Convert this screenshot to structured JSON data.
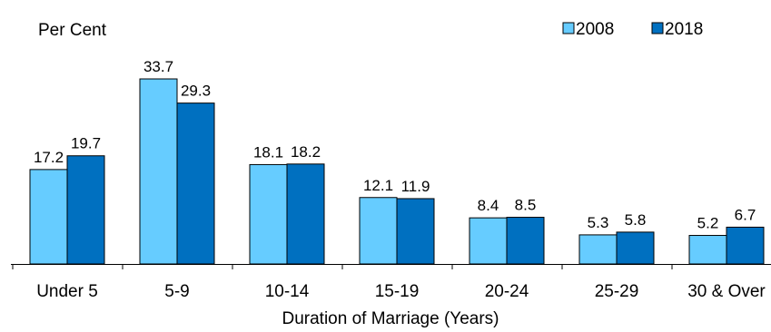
{
  "chart_data": {
    "type": "bar",
    "ylabel": "Per Cent",
    "xlabel": "Duration of Marriage (Years)",
    "categories": [
      "Under 5",
      "5-9",
      "10-14",
      "15-19",
      "20-24",
      "25-29",
      "30 & Over"
    ],
    "series": [
      {
        "name": "2008",
        "color": "#66CCFF",
        "values": [
          17.2,
          33.7,
          18.1,
          12.1,
          8.4,
          5.3,
          5.2
        ],
        "labels": [
          "17.2",
          "33.7",
          "18.1",
          "12.1",
          "8.4",
          "5.3",
          "5.2"
        ]
      },
      {
        "name": "2018",
        "color": "#0070C0",
        "values": [
          19.7,
          29.3,
          18.2,
          11.9,
          8.5,
          5.8,
          6.7
        ],
        "labels": [
          "19.7",
          "29.3",
          "18.2",
          "11.9",
          "8.5",
          "5.8",
          "6.7"
        ]
      }
    ],
    "ylim": [
      0,
      33.7
    ],
    "grid": false,
    "legend_position": "top-right",
    "y_axis_visible": false,
    "bar_outline_color": "#000000"
  }
}
